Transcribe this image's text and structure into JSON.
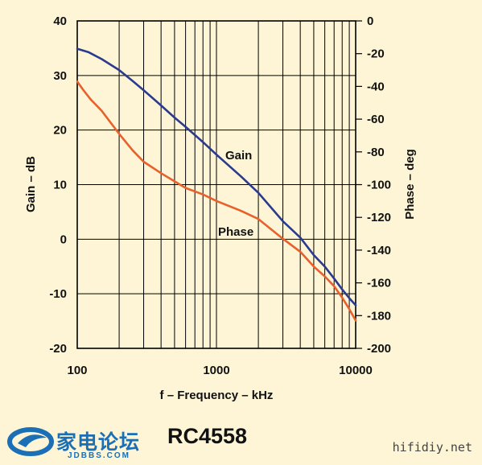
{
  "chart_data": {
    "type": "line",
    "xscale": "log",
    "xlim": [
      100,
      10000
    ],
    "x_ticks": [
      "100",
      "1000",
      "10000"
    ],
    "xlabel": "f – Frequency – kHz",
    "ylabel_left": "Gain – dB",
    "ylim_left": [
      -20,
      40
    ],
    "y_ticks_left": [
      "40",
      "30",
      "20",
      "10",
      "0",
      "-10",
      "-20"
    ],
    "ylabel_right": "Phase – deg",
    "ylim_right": [
      -200,
      0
    ],
    "y_ticks_right": [
      "0",
      "-20",
      "-40",
      "-60",
      "-80",
      "-100",
      "-120",
      "-140",
      "-160",
      "-180",
      "-200"
    ],
    "grid": true,
    "series": [
      {
        "name": "Gain",
        "axis": "left",
        "color": "#2b3a8f",
        "x": [
          100,
          120,
          150,
          200,
          250,
          300,
          400,
          500,
          600,
          800,
          1000,
          1500,
          2000,
          3000,
          4000,
          5000,
          6000,
          7000,
          8000,
          9000,
          10000
        ],
        "y": [
          34.9,
          34.3,
          33.0,
          31.0,
          29.0,
          27.3,
          24.5,
          22.3,
          20.6,
          17.8,
          15.5,
          11.5,
          8.5,
          3.3,
          0.3,
          -2.9,
          -5.0,
          -7.2,
          -9.2,
          -10.8,
          -12.1
        ]
      },
      {
        "name": "Phase",
        "axis": "right",
        "color": "#e8602c",
        "x": [
          100,
          110,
          125,
          150,
          200,
          250,
          300,
          400,
          500,
          600,
          800,
          1000,
          1500,
          2000,
          3000,
          4000,
          5000,
          6000,
          7000,
          8000,
          9000,
          10000
        ],
        "y": [
          -37,
          -42,
          -48,
          -55,
          -69,
          -79,
          -86,
          -93,
          -98,
          -102,
          -106,
          -110,
          -116,
          -121,
          -133,
          -141,
          -150,
          -156,
          -162,
          -169,
          -176,
          -183
        ]
      }
    ]
  },
  "footer": {
    "logo_text": "家电论坛",
    "logo_sub": "JDBBS.COM",
    "part_number": "RC4558",
    "site": "hifidiy.net"
  }
}
